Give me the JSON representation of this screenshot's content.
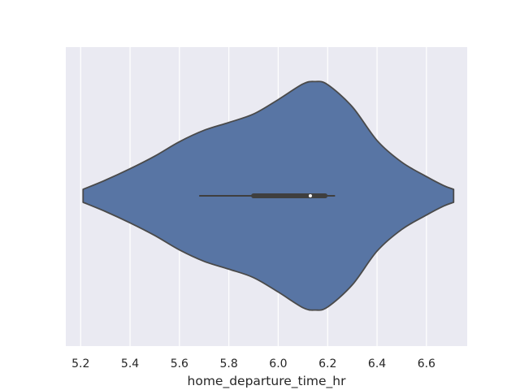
{
  "chart_data": {
    "type": "violin",
    "orientation": "horizontal",
    "xlabel": "home_departure_time_hr",
    "ylabel": "",
    "title": "",
    "xlim": [
      5.14,
      6.765
    ],
    "xticks": [
      5.2,
      5.4,
      5.6,
      5.8,
      6.0,
      6.2,
      6.4,
      6.6
    ],
    "xtick_labels": [
      "5.2",
      "5.4",
      "5.6",
      "5.8",
      "6.0",
      "6.2",
      "6.4",
      "6.6"
    ],
    "grid": true,
    "colors": {
      "background": "#eaeaf2",
      "grid": "#ffffff",
      "violin_fill": "#5875a4",
      "violin_edge": "#4a4a4a",
      "box": "#3f3f3f",
      "median": "#ffffff"
    },
    "density_profile": {
      "x": [
        5.21,
        5.3,
        5.4,
        5.5,
        5.6,
        5.7,
        5.8,
        5.9,
        6.0,
        6.1,
        6.15,
        6.2,
        6.3,
        6.4,
        6.5,
        6.6,
        6.67,
        6.71
      ],
      "half_width": [
        0.054,
        0.13,
        0.225,
        0.33,
        0.45,
        0.545,
        0.61,
        0.68,
        0.8,
        0.93,
        0.95,
        0.925,
        0.74,
        0.46,
        0.28,
        0.16,
        0.085,
        0.054
      ]
    },
    "summary": {
      "min": 5.68,
      "q1": 5.9,
      "median": 6.13,
      "q3": 6.19,
      "max": 6.23
    }
  }
}
